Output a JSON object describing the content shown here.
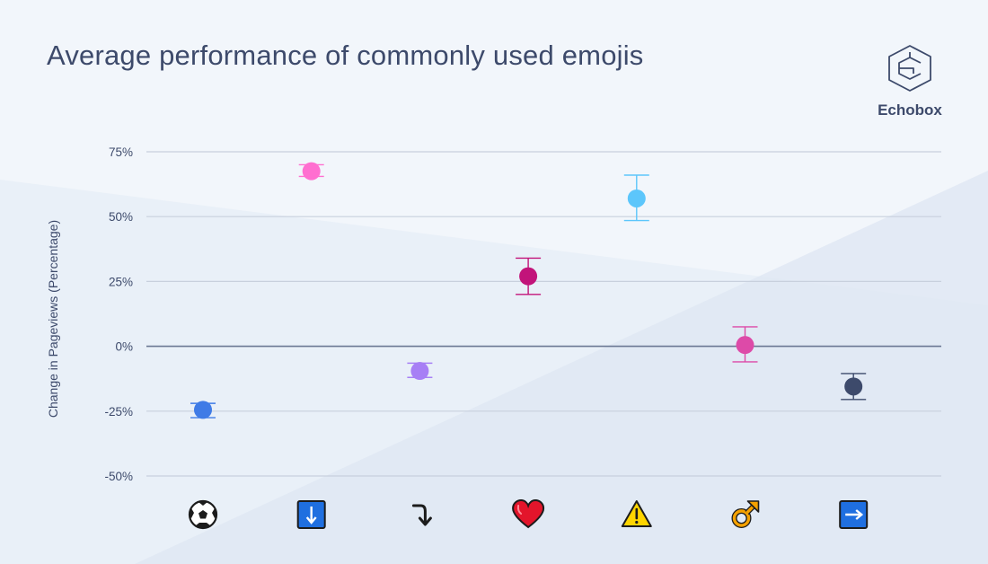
{
  "title": "Average performance of commonly used emojis",
  "brand": {
    "name": "Echobox"
  },
  "colors": {
    "text": "#3d4a6b",
    "grid": "#c8d0dd",
    "zero_line": "#6b7894",
    "background": "#f2f6fb"
  },
  "chart_data": {
    "type": "scatter",
    "title": "Average performance of commonly used emojis",
    "xlabel": "",
    "ylabel": "Change in Pageviews (Percentage)",
    "ylim": [
      -50,
      75
    ],
    "yticks": [
      75,
      50,
      25,
      0,
      -25,
      -50
    ],
    "ytick_labels": [
      "75%",
      "50%",
      "25%",
      "0%",
      "-25%",
      "-50%"
    ],
    "grid": true,
    "legend": "none",
    "error_bars": true,
    "categories": [
      "⚽",
      "⬇",
      "⤵",
      "❤",
      "⚠",
      "♂",
      "➡"
    ],
    "category_icons": [
      "soccer-ball-icon",
      "down-arrow-box-icon",
      "curved-arrow-down-icon",
      "heart-icon",
      "warning-icon",
      "male-sign-icon",
      "right-arrow-box-icon"
    ],
    "points": [
      {
        "category": "⚽",
        "value": -24.5,
        "lower": -27.5,
        "upper": -22,
        "color": "#3f7be6"
      },
      {
        "category": "⬇",
        "value": 67.5,
        "lower": 65.5,
        "upper": 70,
        "color": "#ff6fd0"
      },
      {
        "category": "⤵",
        "value": -9.5,
        "lower": -12,
        "upper": -6.5,
        "color": "#a77ff5"
      },
      {
        "category": "❤",
        "value": 27,
        "lower": 20,
        "upper": 34,
        "color": "#c2147a"
      },
      {
        "category": "⚠",
        "value": 57,
        "lower": 48.5,
        "upper": 66,
        "color": "#5cc6fb"
      },
      {
        "category": "♂",
        "value": 0.5,
        "lower": -6,
        "upper": 7.5,
        "color": "#dd4aa8"
      },
      {
        "category": "➡",
        "value": -15.5,
        "lower": -20.5,
        "upper": -10.5,
        "color": "#3d4a6b"
      }
    ]
  }
}
